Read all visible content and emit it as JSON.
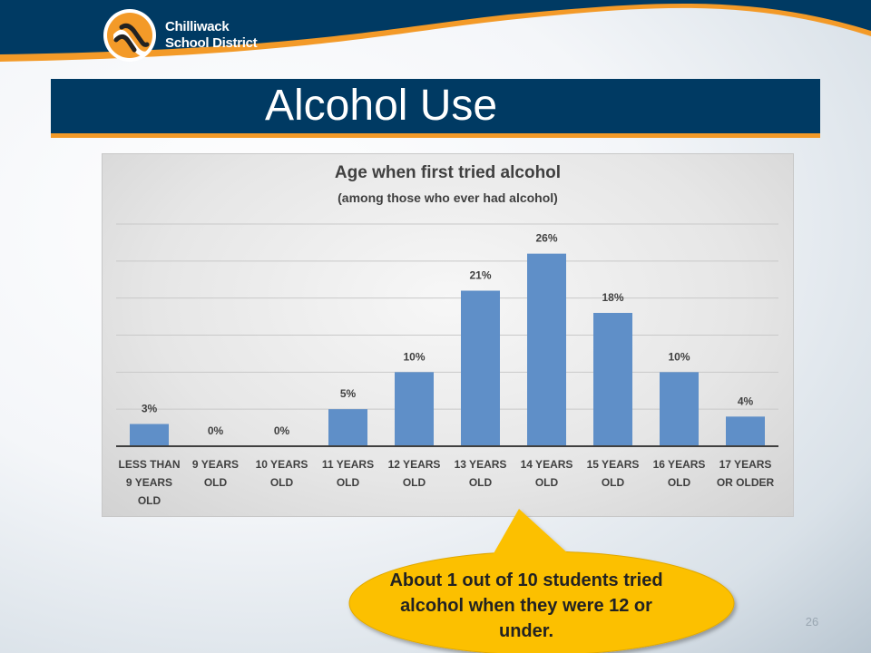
{
  "header": {
    "logo": {
      "line1": "Chilliwack",
      "line2": "School District"
    }
  },
  "slide": {
    "title": "Alcohol Use",
    "page_number": "26",
    "callout": "About 1 out of 10 students tried alcohol when they were 12 or under."
  },
  "colors": {
    "navy": "#003a63",
    "accent_orange": "#f39a28",
    "bar": "#5f8fc8",
    "callout_fill": "#fcc000"
  },
  "chart_data": {
    "type": "bar",
    "title": "Age when first tried alcohol",
    "subtitle": "(among those who ever had alcohol)",
    "categories": [
      [
        "LESS THAN",
        "9 YEARS",
        "OLD"
      ],
      [
        "9 YEARS",
        "OLD"
      ],
      [
        "10 YEARS",
        "OLD"
      ],
      [
        "11 YEARS",
        "OLD"
      ],
      [
        "12 YEARS",
        "OLD"
      ],
      [
        "13 YEARS",
        "OLD"
      ],
      [
        "14 YEARS",
        "OLD"
      ],
      [
        "15 YEARS",
        "OLD"
      ],
      [
        "16 YEARS",
        "OLD"
      ],
      [
        "17 YEARS",
        "OR OLDER"
      ]
    ],
    "values": [
      3,
      0,
      0,
      5,
      10,
      21,
      26,
      18,
      10,
      4
    ],
    "data_labels": [
      "3%",
      "0%",
      "0%",
      "5%",
      "10%",
      "21%",
      "26%",
      "18%",
      "10%",
      "4%"
    ],
    "ylim": [
      0,
      30
    ],
    "y_gridlines": [
      5,
      10,
      15,
      20,
      25,
      30
    ],
    "grid": true,
    "legend": false
  }
}
